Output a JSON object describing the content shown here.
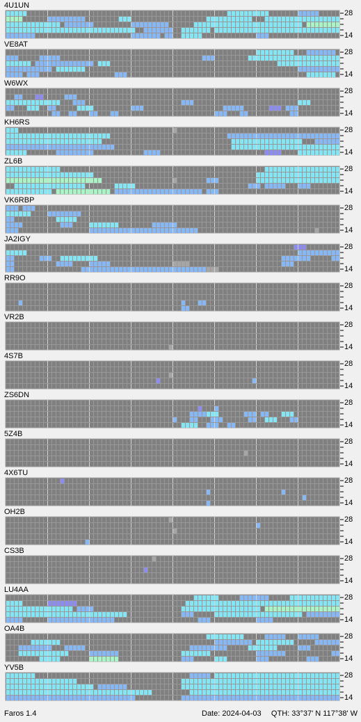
{
  "app": "Faros 1.4",
  "date": "Date: 2024-04-03",
  "qth": "QTH: 33°37' N  117°38' W",
  "band_labels": [
    "28",
    "14"
  ],
  "level_colors": [
    "#a6a6a6",
    "#86b8f6",
    "#84e6f4",
    "#a8f4c4",
    "#8c8cf0"
  ],
  "stations": [
    {
      "name": "4U1UN",
      "rows": [
        [
          [
            0,
            4,
            2
          ],
          [
            53,
            62,
            2
          ],
          [
            70,
            74,
            1
          ]
        ],
        [
          [
            0,
            3,
            3
          ],
          [
            10,
            18,
            1
          ],
          [
            27,
            29,
            2
          ],
          [
            48,
            58,
            2
          ],
          [
            62,
            79,
            2
          ]
        ],
        [
          [
            0,
            12,
            2
          ],
          [
            14,
            20,
            1
          ],
          [
            30,
            38,
            1
          ],
          [
            45,
            70,
            2
          ],
          [
            72,
            79,
            3
          ]
        ],
        [
          [
            0,
            30,
            2
          ],
          [
            33,
            39,
            1
          ],
          [
            42,
            48,
            2
          ],
          [
            50,
            79,
            2
          ]
        ],
        [
          [
            0,
            6,
            1
          ],
          [
            30,
            36,
            1
          ],
          [
            38,
            39,
            1
          ],
          [
            42,
            46,
            2
          ],
          [
            60,
            62,
            1
          ]
        ]
      ]
    },
    {
      "name": "VE8AT",
      "rows": [
        [
          [
            60,
            68,
            2
          ],
          [
            72,
            78,
            1
          ]
        ],
        [
          [
            0,
            2,
            1
          ],
          [
            8,
            12,
            1
          ],
          [
            47,
            49,
            1
          ],
          [
            58,
            79,
            2
          ]
        ],
        [
          [
            0,
            5,
            2
          ],
          [
            7,
            20,
            1
          ],
          [
            22,
            24,
            2
          ],
          [
            65,
            79,
            2
          ]
        ],
        [
          [
            0,
            10,
            1
          ],
          [
            12,
            18,
            2
          ],
          [
            70,
            79,
            1
          ]
        ],
        [
          [
            0,
            3,
            1
          ],
          [
            5,
            7,
            1
          ],
          [
            26,
            28,
            1
          ],
          [
            72,
            78,
            2
          ]
        ]
      ]
    },
    {
      "name": "W6WX",
      "rows": [
        [],
        [
          [
            2,
            3,
            1
          ],
          [
            7,
            8,
            4
          ],
          [
            14,
            16,
            1
          ]
        ],
        [
          [
            0,
            12,
            2
          ],
          [
            16,
            18,
            1
          ],
          [
            42,
            44,
            1
          ],
          [
            70,
            72,
            2
          ]
        ],
        [
          [
            0,
            1,
            1
          ],
          [
            5,
            7,
            2
          ],
          [
            10,
            11,
            1
          ],
          [
            17,
            20,
            2
          ],
          [
            30,
            32,
            1
          ],
          [
            52,
            56,
            1
          ],
          [
            63,
            65,
            4
          ],
          [
            67,
            69,
            1
          ]
        ],
        [
          [
            11,
            12,
            1
          ],
          [
            15,
            16,
            1
          ],
          [
            20,
            21,
            1
          ],
          [
            25,
            26,
            1
          ],
          [
            50,
            52,
            1
          ],
          [
            56,
            57,
            1
          ],
          [
            68,
            69,
            1
          ]
        ]
      ]
    },
    {
      "name": "KH6RS",
      "rows": [
        [
          [
            0,
            2,
            2
          ],
          [
            40,
            40,
            0
          ]
        ],
        [
          [
            0,
            24,
            2
          ],
          [
            53,
            79,
            1
          ]
        ],
        [
          [
            0,
            22,
            2
          ],
          [
            54,
            70,
            2
          ],
          [
            74,
            79,
            1
          ]
        ],
        [
          [
            0,
            25,
            1
          ],
          [
            54,
            79,
            2
          ]
        ],
        [
          [
            0,
            4,
            2
          ],
          [
            12,
            20,
            1
          ],
          [
            33,
            36,
            1
          ],
          [
            62,
            65,
            4
          ],
          [
            70,
            79,
            2
          ]
        ]
      ]
    },
    {
      "name": "ZL6B",
      "rows": [
        [
          [
            0,
            12,
            2
          ],
          [
            62,
            79,
            2
          ]
        ],
        [
          [
            0,
            20,
            2
          ],
          [
            60,
            79,
            2
          ]
        ],
        [
          [
            0,
            22,
            3
          ],
          [
            40,
            40,
            0
          ],
          [
            48,
            50,
            1
          ],
          [
            60,
            79,
            2
          ]
        ],
        [
          [
            2,
            18,
            2
          ],
          [
            26,
            30,
            2
          ],
          [
            58,
            60,
            1
          ],
          [
            62,
            66,
            1
          ],
          [
            70,
            72,
            1
          ]
        ],
        [
          [
            0,
            10,
            2
          ],
          [
            12,
            24,
            3
          ],
          [
            26,
            46,
            1
          ],
          [
            48,
            50,
            1
          ]
        ]
      ]
    },
    {
      "name": "VK6RBP",
      "rows": [
        [
          [
            0,
            2,
            1
          ],
          [
            4,
            6,
            1
          ]
        ],
        [
          [
            0,
            5,
            2
          ],
          [
            10,
            17,
            1
          ]
        ],
        [
          [
            0,
            1,
            1
          ],
          [
            12,
            16,
            2
          ]
        ],
        [
          [
            0,
            3,
            1
          ],
          [
            13,
            15,
            1
          ],
          [
            20,
            26,
            2
          ],
          [
            35,
            40,
            1
          ]
        ],
        [
          [
            0,
            2,
            1
          ],
          [
            20,
            45,
            1
          ],
          [
            74,
            74,
            0
          ]
        ]
      ]
    },
    {
      "name": "JA2IGY",
      "rows": [
        [
          [
            69,
            71,
            4
          ]
        ],
        [
          [
            0,
            4,
            2
          ],
          [
            70,
            79,
            1
          ]
        ],
        [
          [
            0,
            1,
            1
          ],
          [
            8,
            10,
            1
          ],
          [
            13,
            21,
            2
          ],
          [
            66,
            72,
            1
          ],
          [
            78,
            79,
            1
          ]
        ],
        [
          [
            0,
            1,
            1
          ],
          [
            12,
            15,
            1
          ],
          [
            20,
            24,
            1
          ],
          [
            40,
            43,
            0
          ],
          [
            66,
            68,
            1
          ]
        ],
        [
          [
            0,
            1,
            1
          ],
          [
            18,
            47,
            1
          ],
          [
            48,
            50,
            0
          ]
        ]
      ]
    },
    {
      "name": "RR9O",
      "rows": [
        [],
        [],
        [],
        [
          [
            3,
            3,
            1
          ],
          [
            42,
            42,
            1
          ],
          [
            46,
            47,
            1
          ]
        ],
        [
          [
            42,
            43,
            1
          ]
        ]
      ]
    },
    {
      "name": "VR2B",
      "rows": [
        [],
        [],
        [],
        [],
        [
          [
            39,
            39,
            0
          ]
        ]
      ]
    },
    {
      "name": "4S7B",
      "rows": [
        [],
        [],
        [
          [
            39,
            39,
            0
          ]
        ],
        [
          [
            36,
            36,
            4
          ],
          [
            59,
            59,
            1
          ]
        ],
        []
      ]
    },
    {
      "name": "ZS6DN",
      "rows": [
        [],
        [
          [
            46,
            46,
            4
          ],
          [
            50,
            50,
            1
          ]
        ],
        [
          [
            44,
            47,
            1
          ],
          [
            48,
            50,
            2
          ],
          [
            57,
            59,
            1
          ],
          [
            61,
            62,
            1
          ],
          [
            66,
            68,
            2
          ]
        ],
        [
          [
            40,
            40,
            1
          ],
          [
            44,
            45,
            1
          ],
          [
            49,
            51,
            1
          ],
          [
            58,
            59,
            1
          ],
          [
            62,
            64,
            2
          ],
          [
            68,
            69,
            1
          ]
        ],
        [
          [
            42,
            45,
            2
          ],
          [
            48,
            50,
            1
          ],
          [
            53,
            54,
            1
          ]
        ]
      ]
    },
    {
      "name": "5Z4B",
      "rows": [
        [],
        [],
        [
          [
            57,
            57,
            0
          ]
        ],
        [],
        []
      ]
    },
    {
      "name": "4X6TU",
      "rows": [
        [
          [
            13,
            13,
            4
          ]
        ],
        [],
        [
          [
            48,
            48,
            1
          ],
          [
            66,
            66,
            1
          ]
        ],
        [
          [
            71,
            71,
            1
          ]
        ],
        [
          [
            48,
            48,
            1
          ]
        ]
      ]
    },
    {
      "name": "OH2B",
      "rows": [
        [
          [
            39,
            39,
            0
          ]
        ],
        [
          [
            60,
            60,
            1
          ]
        ],
        [
          [
            40,
            40,
            0
          ]
        ],
        [],
        [
          [
            19,
            19,
            1
          ]
        ]
      ]
    },
    {
      "name": "CS3B",
      "rows": [
        [
          [
            35,
            35,
            0
          ]
        ],
        [],
        [
          [
            33,
            33,
            4
          ]
        ],
        [],
        []
      ]
    },
    {
      "name": "LU4AA",
      "rows": [
        [
          [
            45,
            50,
            2
          ],
          [
            56,
            62,
            1
          ],
          [
            68,
            79,
            2
          ]
        ],
        [
          [
            0,
            3,
            2
          ],
          [
            10,
            16,
            4
          ],
          [
            43,
            79,
            2
          ]
        ],
        [
          [
            0,
            15,
            2
          ],
          [
            17,
            20,
            1
          ],
          [
            42,
            60,
            2
          ],
          [
            62,
            79,
            3
          ]
        ],
        [
          [
            0,
            28,
            2
          ],
          [
            42,
            44,
            1
          ],
          [
            50,
            70,
            2
          ],
          [
            72,
            79,
            1
          ]
        ],
        [
          [
            0,
            3,
            1
          ],
          [
            10,
            25,
            1
          ],
          [
            46,
            48,
            1
          ],
          [
            60,
            63,
            1
          ]
        ]
      ]
    },
    {
      "name": "OA4B",
      "rows": [
        [
          [
            48,
            56,
            2
          ],
          [
            62,
            66,
            1
          ],
          [
            70,
            74,
            1
          ]
        ],
        [
          [
            6,
            12,
            2
          ],
          [
            50,
            58,
            1
          ],
          [
            60,
            68,
            2
          ],
          [
            74,
            79,
            1
          ]
        ],
        [
          [
            3,
            10,
            1
          ],
          [
            14,
            18,
            1
          ],
          [
            44,
            52,
            1
          ],
          [
            58,
            64,
            2
          ],
          [
            70,
            72,
            1
          ]
        ],
        [
          [
            3,
            14,
            2
          ],
          [
            20,
            26,
            1
          ],
          [
            42,
            48,
            2
          ],
          [
            60,
            66,
            1
          ],
          [
            78,
            79,
            1
          ]
        ],
        [
          [
            8,
            12,
            2
          ],
          [
            20,
            26,
            3
          ],
          [
            42,
            44,
            1
          ],
          [
            50,
            52,
            2
          ],
          [
            60,
            62,
            1
          ],
          [
            72,
            74,
            1
          ]
        ]
      ]
    },
    {
      "name": "YV5B",
      "rows": [
        [
          [
            0,
            6,
            2
          ],
          [
            44,
            48,
            1
          ],
          [
            50,
            79,
            2
          ]
        ],
        [
          [
            0,
            16,
            2
          ],
          [
            42,
            79,
            2
          ]
        ],
        [
          [
            0,
            20,
            2
          ],
          [
            22,
            28,
            1
          ],
          [
            42,
            79,
            2
          ]
        ],
        [
          [
            0,
            34,
            2
          ],
          [
            44,
            79,
            2
          ]
        ],
        [
          [
            0,
            30,
            1
          ],
          [
            42,
            79,
            1
          ]
        ]
      ]
    }
  ]
}
